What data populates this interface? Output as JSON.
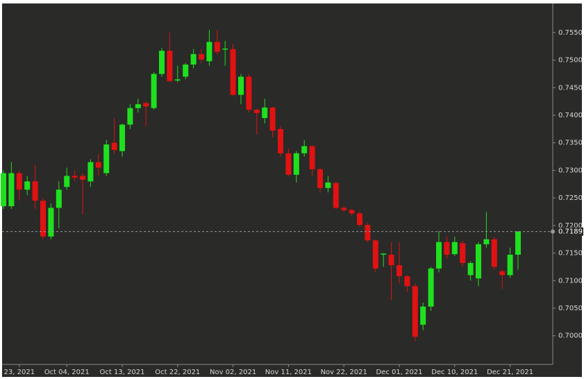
{
  "chart_data": {
    "type": "candlestick",
    "categories": [
      null,
      null,
      "23, 2021",
      null,
      null,
      null,
      null,
      null,
      "Oct 04, 2021",
      null,
      null,
      null,
      null,
      null,
      null,
      "Oct 13, 2021",
      null,
      null,
      null,
      null,
      null,
      null,
      "Oct 22, 2021",
      null,
      null,
      null,
      null,
      null,
      null,
      "Nov 02, 2021",
      null,
      null,
      null,
      null,
      null,
      null,
      "Nov 11, 2021",
      null,
      null,
      null,
      null,
      null,
      null,
      "Nov 22, 2021",
      null,
      null,
      null,
      null,
      null,
      null,
      "Dec 01, 2021",
      null,
      null,
      null,
      null,
      null,
      null,
      "Dec 10, 2021",
      null,
      null,
      null,
      null,
      null,
      null,
      "Dec 21, 2021",
      null
    ],
    "open": [
      0.7235,
      0.7235,
      0.7295,
      0.7265,
      0.728,
      0.7245,
      0.718,
      0.7232,
      0.727,
      0.729,
      0.729,
      0.728,
      0.7315,
      0.7295,
      0.735,
      0.7335,
      0.7383,
      0.7413,
      0.7422,
      0.7413,
      0.7475,
      0.7517,
      0.7463,
      0.747,
      0.7492,
      0.7511,
      0.7498,
      0.7533,
      0.752,
      0.752,
      0.7437,
      0.747,
      0.741,
      0.7395,
      0.7414,
      0.7375,
      0.7331,
      0.7292,
      0.7331,
      0.7344,
      0.7302,
      0.7268,
      0.7277,
      0.7232,
      0.7228,
      0.7222,
      0.7201,
      0.7173,
      0.7147,
      0.7147,
      0.7128,
      0.7108,
      0.709,
      0.702,
      0.7053,
      0.7122,
      0.717,
      0.7148,
      0.7168,
      0.711,
      0.7104,
      0.7166,
      0.7175,
      0.7117,
      0.711,
      0.7147
    ],
    "high": [
      0.73,
      0.7315,
      0.73,
      0.729,
      0.731,
      0.725,
      0.724,
      0.728,
      0.7305,
      0.73,
      0.7295,
      0.732,
      0.733,
      0.7355,
      0.7395,
      0.7385,
      0.742,
      0.743,
      0.7425,
      0.7478,
      0.7522,
      0.755,
      0.749,
      0.7495,
      0.752,
      0.752,
      0.7555,
      0.7555,
      0.7535,
      0.753,
      0.7475,
      0.7475,
      0.7412,
      0.743,
      0.7415,
      0.738,
      0.734,
      0.7335,
      0.7355,
      0.7345,
      0.7305,
      0.729,
      0.728,
      0.7235,
      0.723,
      0.7225,
      0.7205,
      0.7175,
      0.715,
      0.717,
      0.717,
      0.711,
      0.7095,
      0.706,
      0.7125,
      0.719,
      0.718,
      0.718,
      0.7172,
      0.7135,
      0.717,
      0.7225,
      0.718,
      0.712,
      0.716,
      0.719
    ],
    "low": [
      0.723,
      0.723,
      0.7245,
      0.7255,
      0.723,
      0.7175,
      0.7175,
      0.7195,
      0.7265,
      0.728,
      0.722,
      0.727,
      0.729,
      0.729,
      0.733,
      0.7325,
      0.7375,
      0.7405,
      0.738,
      0.741,
      0.747,
      0.746,
      0.746,
      0.7465,
      0.7485,
      0.7495,
      0.749,
      0.751,
      0.749,
      0.7435,
      0.742,
      0.7405,
      0.7365,
      0.7385,
      0.736,
      0.7325,
      0.729,
      0.7278,
      0.7325,
      0.729,
      0.726,
      0.726,
      0.723,
      0.7225,
      0.7218,
      0.7198,
      0.717,
      0.7115,
      0.7125,
      0.7065,
      0.7095,
      0.708,
      0.699,
      0.701,
      0.7045,
      0.7115,
      0.714,
      0.7145,
      0.7125,
      0.71,
      0.709,
      0.716,
      0.712,
      0.7085,
      0.7105,
      0.712
    ],
    "close": [
      0.7295,
      0.7295,
      0.7265,
      0.728,
      0.7245,
      0.718,
      0.7232,
      0.7265,
      0.729,
      0.7287,
      0.7283,
      0.7315,
      0.7305,
      0.7347,
      0.7337,
      0.7383,
      0.7413,
      0.742,
      0.7416,
      0.7475,
      0.7517,
      0.7462,
      0.7465,
      0.7492,
      0.7511,
      0.7501,
      0.7533,
      0.7515,
      0.7521,
      0.7437,
      0.747,
      0.741,
      0.7404,
      0.7414,
      0.7372,
      0.7331,
      0.7292,
      0.7331,
      0.7344,
      0.7302,
      0.7268,
      0.7278,
      0.7232,
      0.7228,
      0.7222,
      0.7201,
      0.7173,
      0.7122,
      0.7149,
      0.7128,
      0.7108,
      0.709,
      0.6998,
      0.7053,
      0.7122,
      0.717,
      0.7147,
      0.717,
      0.7132,
      0.7132,
      0.7166,
      0.7175,
      0.7125,
      0.711,
      0.7147,
      0.7189
    ],
    "up_color": "#1fe01f",
    "down_color": "#e01212",
    "ylim": [
      0.6948,
      0.7599
    ],
    "yticks": [
      {
        "value": 0.7,
        "label": "0.7000"
      },
      {
        "value": 0.705,
        "label": "0.7050"
      },
      {
        "value": 0.71,
        "label": "0.7100"
      },
      {
        "value": 0.715,
        "label": "0.7150"
      },
      {
        "value": 0.72,
        "label": "0.7200"
      },
      {
        "value": 0.725,
        "label": "0.7250"
      },
      {
        "value": 0.73,
        "label": "0.7300"
      },
      {
        "value": 0.735,
        "label": "0.7350"
      },
      {
        "value": 0.74,
        "label": "0.7400"
      },
      {
        "value": 0.745,
        "label": "0.7450"
      },
      {
        "value": 0.75,
        "label": "0.7500"
      },
      {
        "value": 0.755,
        "label": "0.7550"
      }
    ],
    "last_price": 0.7189
  }
}
